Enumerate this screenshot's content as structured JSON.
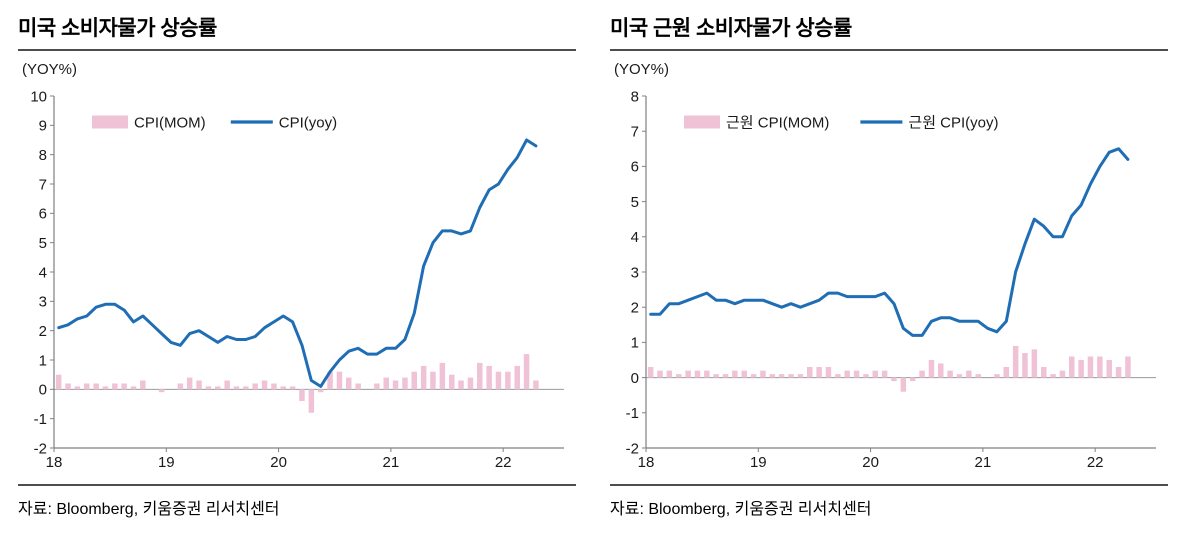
{
  "colors": {
    "bar_fill": "#F0C2D6",
    "line_stroke": "#1F6EB5",
    "axis": "#808080",
    "zero_line": "#9a9a9a"
  },
  "chart_data": [
    {
      "type": "bar+line",
      "title": "미국 소비자물가 상승률",
      "y_unit_label": "(YOY%)",
      "source": "자료: Bloomberg, 키움증권 리서치센터",
      "x_start": "2018-01",
      "x_tick_labels": [
        "18",
        "19",
        "20",
        "21",
        "22"
      ],
      "x_tick_months": [
        0,
        12,
        24,
        36,
        48
      ],
      "x_domain_months": 54.5,
      "ylim": [
        -2,
        10
      ],
      "y_tick_step": 1,
      "legend_position": "top-left-inside",
      "grid": false,
      "series": [
        {
          "name": "CPI(MOM)",
          "type": "bar",
          "color": "#F0C2D6",
          "values": [
            0.5,
            0.2,
            0.1,
            0.2,
            0.2,
            0.1,
            0.2,
            0.2,
            0.1,
            0.3,
            0.0,
            -0.1,
            0.0,
            0.2,
            0.4,
            0.3,
            0.1,
            0.1,
            0.3,
            0.1,
            0.1,
            0.2,
            0.3,
            0.2,
            0.1,
            0.1,
            -0.4,
            -0.8,
            -0.1,
            0.6,
            0.6,
            0.4,
            0.2,
            0.0,
            0.2,
            0.4,
            0.3,
            0.4,
            0.6,
            0.8,
            0.6,
            0.9,
            0.5,
            0.3,
            0.4,
            0.9,
            0.8,
            0.6,
            0.6,
            0.8,
            1.2,
            0.3
          ]
        },
        {
          "name": "CPI(yoy)",
          "type": "line",
          "color": "#1F6EB5",
          "values": [
            2.1,
            2.2,
            2.4,
            2.5,
            2.8,
            2.9,
            2.9,
            2.7,
            2.3,
            2.5,
            2.2,
            1.9,
            1.6,
            1.5,
            1.9,
            2.0,
            1.8,
            1.6,
            1.8,
            1.7,
            1.7,
            1.8,
            2.1,
            2.3,
            2.5,
            2.3,
            1.5,
            0.3,
            0.1,
            0.6,
            1.0,
            1.3,
            1.4,
            1.2,
            1.2,
            1.4,
            1.4,
            1.7,
            2.6,
            4.2,
            5.0,
            5.4,
            5.4,
            5.3,
            5.4,
            6.2,
            6.8,
            7.0,
            7.5,
            7.9,
            8.5,
            8.3
          ]
        }
      ]
    },
    {
      "type": "bar+line",
      "title": "미국 근원 소비자물가 상승률",
      "y_unit_label": "(YOY%)",
      "source": "자료: Bloomberg, 키움증권 리서치센터",
      "x_start": "2018-01",
      "x_tick_labels": [
        "18",
        "19",
        "20",
        "21",
        "22"
      ],
      "x_tick_months": [
        0,
        12,
        24,
        36,
        48
      ],
      "x_domain_months": 54.5,
      "ylim": [
        -2,
        8
      ],
      "y_tick_step": 1,
      "legend_position": "top-left-inside",
      "grid": false,
      "series": [
        {
          "name": "근원 CPI(MOM)",
          "type": "bar",
          "color": "#F0C2D6",
          "values": [
            0.3,
            0.2,
            0.2,
            0.1,
            0.2,
            0.2,
            0.2,
            0.1,
            0.1,
            0.2,
            0.2,
            0.1,
            0.2,
            0.1,
            0.1,
            0.1,
            0.1,
            0.3,
            0.3,
            0.3,
            0.1,
            0.2,
            0.2,
            0.1,
            0.2,
            0.2,
            -0.1,
            -0.4,
            -0.1,
            0.2,
            0.5,
            0.4,
            0.2,
            0.1,
            0.2,
            0.1,
            0.0,
            0.1,
            0.3,
            0.9,
            0.7,
            0.8,
            0.3,
            0.1,
            0.2,
            0.6,
            0.5,
            0.6,
            0.6,
            0.5,
            0.3,
            0.6
          ]
        },
        {
          "name": "근원 CPI(yoy)",
          "type": "line",
          "color": "#1F6EB5",
          "values": [
            1.8,
            1.8,
            2.1,
            2.1,
            2.2,
            2.3,
            2.4,
            2.2,
            2.2,
            2.1,
            2.2,
            2.2,
            2.2,
            2.1,
            2.0,
            2.1,
            2.0,
            2.1,
            2.2,
            2.4,
            2.4,
            2.3,
            2.3,
            2.3,
            2.3,
            2.4,
            2.1,
            1.4,
            1.2,
            1.2,
            1.6,
            1.7,
            1.7,
            1.6,
            1.6,
            1.6,
            1.4,
            1.3,
            1.6,
            3.0,
            3.8,
            4.5,
            4.3,
            4.0,
            4.0,
            4.6,
            4.9,
            5.5,
            6.0,
            6.4,
            6.5,
            6.2
          ]
        }
      ]
    }
  ]
}
